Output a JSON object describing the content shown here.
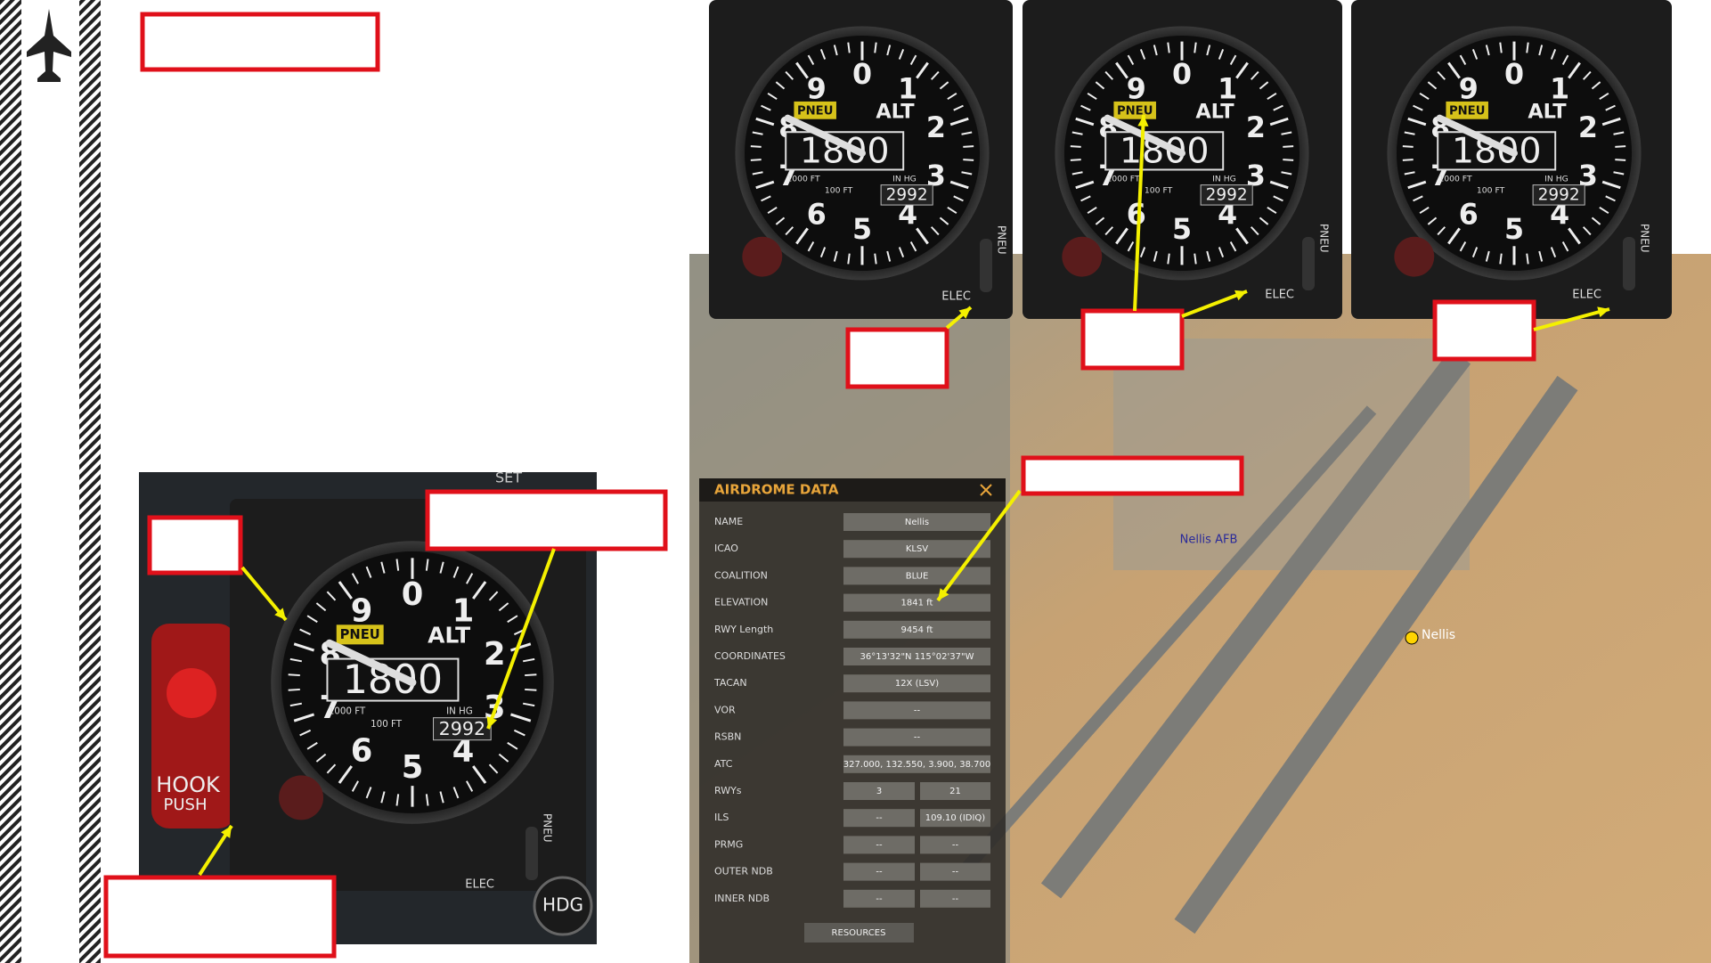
{
  "gauge": {
    "numbers": [
      "0",
      "1",
      "2",
      "3",
      "4",
      "5",
      "6",
      "7",
      "8",
      "9"
    ],
    "title": "ALT",
    "flag": "PNEU",
    "counter": "1800",
    "thousand_ft": "1000 FT",
    "hundred_ft": "100 FT",
    "in_hg": "IN HG",
    "baro": "2992",
    "switch_elec": "ELEC",
    "switch_pneu": "PNEU"
  },
  "cockpit": {
    "hook": "HOOK",
    "push": "PUSH",
    "hdg": "HDG",
    "set": "SET"
  },
  "map": {
    "labels": [
      "Nellis AFB",
      "Nellis"
    ]
  },
  "airdrome": {
    "title": "AIRDROME DATA",
    "button": "RESOURCES",
    "rows": [
      [
        "NAME",
        "Nellis"
      ],
      [
        "ICAO",
        "KLSV"
      ],
      [
        "COALITION",
        "BLUE"
      ],
      [
        "ELEVATION",
        "1841 ft"
      ],
      [
        "RWY Length",
        "9454 ft"
      ],
      [
        "COORDINATES",
        "36°13'32\"N 115°02'37\"W"
      ],
      [
        "TACAN",
        "12X (LSV)"
      ],
      [
        "VOR",
        "--"
      ],
      [
        "RSBN",
        "--"
      ],
      [
        "ATC",
        "327.000, 132.550, 3.900, 38.700"
      ],
      [
        "RWYs",
        "3",
        "21"
      ],
      [
        "ILS",
        "--",
        "109.10 (IDIQ)"
      ],
      [
        "PRMG",
        "--",
        "--"
      ],
      [
        "OUTER NDB",
        "--",
        "--"
      ],
      [
        "INNER NDB",
        "--",
        "--"
      ]
    ]
  }
}
